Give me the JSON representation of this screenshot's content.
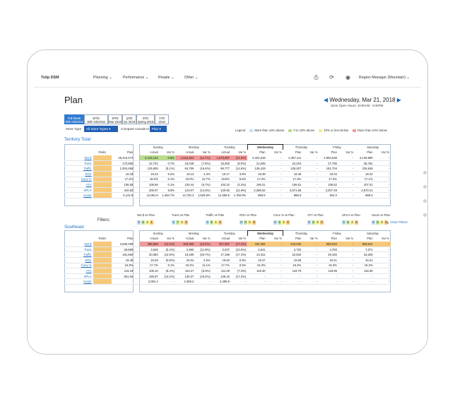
{
  "nav": {
    "brand": "Tulip DSM",
    "menu": [
      "Planning",
      "Performance",
      "People",
      "Other"
    ],
    "role": "Region Manager (Mountain)"
  },
  "page": {
    "title": "Plan",
    "date": "Wednesday, Mar 21, 2018",
    "hours": "Store Open Hours: 10:00AM - 9:30PM"
  },
  "period_tabs": [
    [
      "Full Week",
      "W/E 03/24/18"
    ],
    [
      "WTD",
      "W/E 03/24/18"
    ],
    [
      "MTD",
      "Mar 2018"
    ],
    [
      "QTD",
      "Q1 2018"
    ],
    [
      "STD",
      "Spring 2018"
    ],
    [
      "YTD",
      "2018"
    ]
  ],
  "controls": {
    "store_type_label": "Store Type",
    "store_type_value": "All Store Types",
    "compare_label": "Compare Actuals to",
    "compare_value": "Plan"
  },
  "legend": {
    "label": "Legend",
    "items": [
      "More than 10% above",
      "0 to 10% above",
      "10% or less below",
      "More than 10% below"
    ],
    "colors": [
      "#bfe0f4",
      "#b9dc8f",
      "#f3ec8f",
      "#f19b9b"
    ]
  },
  "days": [
    "Sunday",
    "Monday",
    "Tuesday",
    "Wednesday",
    "Thursday",
    "Friday",
    "Saturday"
  ],
  "col_heads": {
    "risks": "Risks",
    "plan": "Plan",
    "actual": "Actual",
    "var": "Var %"
  },
  "territory": {
    "title": "Territory Total",
    "rows": [
      {
        "label": "Net $",
        "plan": "18,416,474",
        "cells": [
          [
            "2,418,123",
            "0.8%"
          ],
          [
            "1,812,824",
            "(12.7%)"
          ],
          [
            "1,879,997",
            "(11.9%)"
          ],
          [
            "2,324,619",
            "-"
          ],
          [
            "2,367,111",
            "-"
          ],
          [
            "2,963,536",
            "-"
          ],
          [
            "4,149,969",
            "-"
          ]
        ]
      },
      {
        "label": "Trans",
        "plan": "172,682",
        "cells": [
          [
            "22,701",
            "0.7%"
          ],
          [
            "18,049",
            "(7.6%)"
          ],
          [
            "18,392",
            "(8.0%)"
          ],
          [
            "21,845",
            "-"
          ],
          [
            "22,204",
            "-"
          ],
          [
            "27,795",
            "-"
          ],
          [
            "38,781",
            "-"
          ]
        ]
      },
      {
        "label": "Traffic",
        "plan": "1,004,466",
        "cells": [
          [
            "125,825",
            "(5.1%)"
          ],
          [
            "94,759",
            "(16.4%)"
          ],
          [
            "98,777",
            "(14.6%)"
          ],
          [
            "126,419",
            "-"
          ],
          [
            "128,307",
            "-"
          ],
          [
            "161,704",
            "-"
          ],
          [
            "226,546",
            "-"
          ]
        ]
      },
      {
        "label": "ROV",
        "plan": "18.33",
        "cells": [
          [
            "19.23",
            "6.2%"
          ],
          [
            "19.13",
            "4.3%"
          ],
          [
            "19.17",
            "3.9%"
          ],
          [
            "18.39",
            "-"
          ],
          [
            "18.45",
            "-"
          ],
          [
            "18.33",
            "-"
          ],
          [
            "18.32",
            "-"
          ]
        ]
      },
      {
        "label": "Conv %",
        "plan": "17.2%",
        "cells": [
          [
            "18.0%",
            "6.1%"
          ],
          [
            "19.0%",
            "10.7%"
          ],
          [
            "18.6%",
            "8.4%"
          ],
          [
            "17.3%",
            "-"
          ],
          [
            "17.3%",
            "-"
          ],
          [
            "17.2%",
            "-"
          ],
          [
            "17.1%",
            "-"
          ]
        ]
      },
      {
        "label": "ATV",
        "plan": "106.65",
        "cells": [
          [
            "106.56",
            "0.1%"
          ],
          [
            "100.44",
            "(5.7%)"
          ],
          [
            "102.22",
            "(4.2%)"
          ],
          [
            "106.41",
            "-"
          ],
          [
            "106.61",
            "-"
          ],
          [
            "106.62",
            "-"
          ],
          [
            "107.01",
            "-"
          ]
        ]
      },
      {
        "label": "SPLH",
        "plan": "410.52",
        "cells": [
          [
            "200.07",
            "9.8%"
          ],
          [
            "123.07",
            "(14.3%)"
          ],
          [
            "130.92",
            "(11.9%)"
          ],
          [
            "2,366.52",
            "-"
          ],
          [
            "2,671.68",
            "-"
          ],
          [
            "3,207.29",
            "-"
          ],
          [
            "4,673.41",
            "-"
          ]
        ]
      },
      {
        "label": "Hours",
        "plan": "6,122.5",
        "cells": [
          [
            "12,091.6",
            "1,484.7%"
          ],
          [
            "14,730.3",
            "1,525.9%"
          ],
          [
            "14,359.5",
            "1,760.0%"
          ],
          [
            "983.5",
            "-"
          ],
          [
            "886.0",
            "-"
          ],
          [
            "924.0",
            "-"
          ],
          [
            "888.0",
            "-"
          ]
        ]
      }
    ]
  },
  "filters": {
    "label": "Filters:",
    "groups": [
      [
        "Net $ vs Plan",
        "0",
        "5",
        "2",
        "1"
      ],
      [
        "Trans vs Plan",
        "3",
        "7",
        "0",
        "0"
      ],
      [
        "Traffic vs Plan",
        "0",
        "6",
        "1",
        "0"
      ],
      [
        "ROV vs Plan",
        "0",
        "0",
        "0",
        "0"
      ],
      [
        "Conv % vs Plan",
        "0",
        "4",
        "3",
        "0"
      ],
      [
        "ATV vs Plan",
        "0",
        "0",
        "0",
        "0"
      ],
      [
        "SPLH vs Plan",
        "0",
        "5",
        "2",
        "0"
      ],
      [
        "Hours vs Plan",
        "0",
        "0",
        "0",
        "0"
      ]
    ],
    "trailing_count": "6",
    "clear": "Clear Filters"
  },
  "southeast": {
    "title": "Southeast",
    "rows": [
      {
        "label": "Net $",
        "plan": "3,536,259",
        "cells": [
          [
            "386,869",
            "(13.2%)"
          ],
          [
            "326,306",
            "(19.2%)"
          ],
          [
            "337,357",
            "(17.2%)"
          ],
          [
            "434,394",
            "-"
          ],
          [
            "443,292",
            "-"
          ],
          [
            "565,032",
            "-"
          ],
          [
            "836,811",
            "-"
          ]
        ]
      },
      {
        "label": "Trans",
        "plan": "29,869",
        "cells": [
          [
            "3,546",
            "(5.4%)"
          ],
          [
            "2,960",
            "(11.9%)"
          ],
          [
            "3,037",
            "(10.6%)"
          ],
          [
            "3,641",
            "-"
          ],
          [
            "3,702",
            "-"
          ],
          [
            "4,750",
            "-"
          ],
          [
            "7,071",
            "-"
          ]
        ]
      },
      {
        "label": "Traffic",
        "plan": "181,684",
        "cells": [
          [
            "20,084",
            "(12.6%)"
          ],
          [
            "16,269",
            "(20.7%)"
          ],
          [
            "17,188",
            "(17.4%)"
          ],
          [
            "22,311",
            "-"
          ],
          [
            "22,632",
            "-"
          ],
          [
            "29,192",
            "-"
          ],
          [
            "43,325",
            "-"
          ]
        ]
      },
      {
        "label": "ROV",
        "plan": "19.46",
        "cells": [
          [
            "19.26",
            "(0.8%)"
          ],
          [
            "20.04",
            "2.0%"
          ],
          [
            "19.63",
            "0.3%"
          ],
          [
            "19.47",
            "-"
          ],
          [
            "19.59",
            "-"
          ],
          [
            "19.41",
            "-"
          ],
          [
            "19.31",
            "-"
          ]
        ]
      },
      {
        "label": "Conv %",
        "plan": "16.3%",
        "cells": [
          [
            "17.7%",
            "8.1%"
          ],
          [
            "18.2%",
            "11.1%"
          ],
          [
            "17.7%",
            "8.2%"
          ],
          [
            "16.3%",
            "-"
          ],
          [
            "16.4%",
            "-"
          ],
          [
            "16.3%",
            "-"
          ],
          [
            "16.3%",
            "-"
          ]
        ]
      },
      {
        "label": "ATV",
        "plan": "119.19",
        "cells": [
          [
            "109.10",
            "(8.2%)"
          ],
          [
            "110.27",
            "(8.3%)"
          ],
          [
            "111.08",
            "(7.3%)"
          ],
          [
            "119.30",
            "-"
          ],
          [
            "119.75",
            "-"
          ],
          [
            "118.96",
            "-"
          ],
          [
            "118.35",
            "-"
          ]
        ]
      },
      {
        "label": "SPLH",
        "plan": "501.84",
        "cells": [
          [
            "185.87",
            "(13.2%)"
          ],
          [
            "130.27",
            "(19.2%)"
          ],
          [
            "135.16",
            "(17.2%)"
          ],
          [
            "-",
            "-"
          ],
          [
            "-",
            "-"
          ],
          [
            "-",
            "-"
          ],
          [
            "-",
            "-"
          ]
        ]
      },
      {
        "label": "Hours",
        "plan": "",
        "cells": [
          [
            "2,081.4",
            "-"
          ],
          [
            "2,469.2",
            "-"
          ],
          [
            "2,495.9",
            "-"
          ],
          [
            "-",
            "-"
          ],
          [
            "-",
            "-"
          ],
          [
            "-",
            "-"
          ],
          [
            "-",
            "-"
          ]
        ]
      }
    ]
  }
}
